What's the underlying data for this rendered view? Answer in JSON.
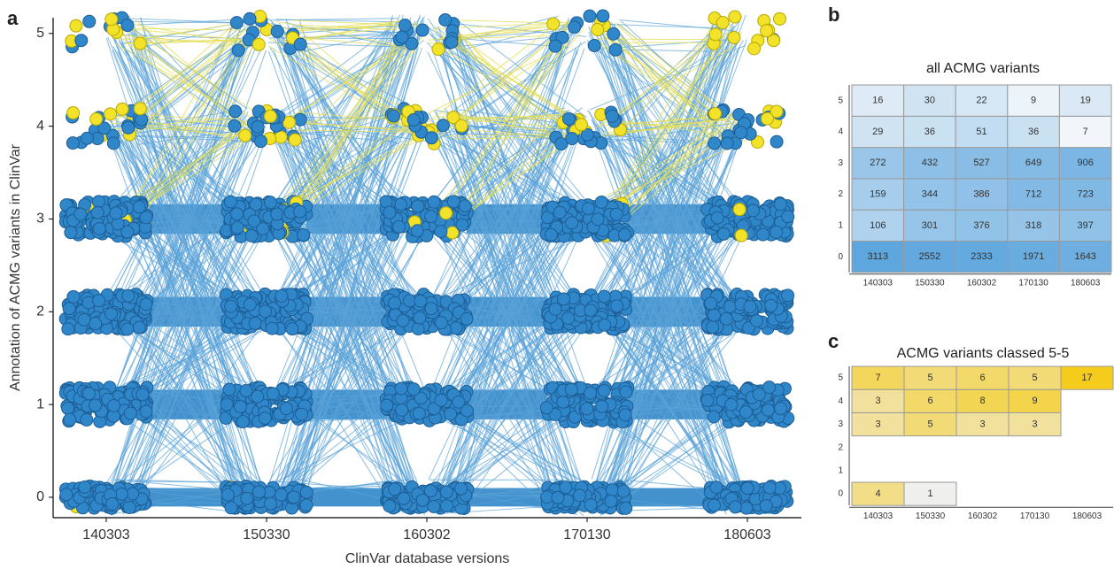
{
  "chart_data": [
    {
      "type": "scatter",
      "panel": "a",
      "xlabel": "ClinVar database versions",
      "ylabel": "Annotation of ACMG variants in ClinVar",
      "categories": [
        "140303",
        "150330",
        "160302",
        "170130",
        "180603"
      ],
      "ylim": [
        -0.22,
        5.17
      ],
      "yticks": [
        0,
        1,
        2,
        3,
        4,
        5
      ],
      "color": "#2f86c8",
      "highlight_color": "#f2e32a"
    },
    {
      "type": "heatmap",
      "panel": "b",
      "title": "all ACMG variants",
      "x_categories": [
        "140303",
        "150330",
        "160302",
        "170130",
        "180603"
      ],
      "y_categories": [
        0,
        1,
        2,
        3,
        4,
        5
      ],
      "values": [
        [
          3113,
          2552,
          2333,
          1971,
          1643
        ],
        [
          106,
          301,
          376,
          318,
          397
        ],
        [
          159,
          344,
          386,
          712,
          723
        ],
        [
          272,
          432,
          527,
          649,
          906
        ],
        [
          29,
          36,
          51,
          36,
          7
        ],
        [
          16,
          30,
          22,
          9,
          19
        ]
      ],
      "colors": [
        "#f2f6fa",
        "#5ea6de"
      ]
    },
    {
      "type": "heatmap",
      "panel": "c",
      "title": "ACMG variants classed 5-5",
      "x_categories": [
        "140303",
        "150330",
        "160302",
        "170130",
        "180603"
      ],
      "y_categories": [
        0,
        1,
        2,
        3,
        4,
        5
      ],
      "values": [
        [
          4,
          1,
          null,
          null,
          null
        ],
        [
          null,
          null,
          null,
          null,
          null
        ],
        [
          null,
          null,
          null,
          null,
          null
        ],
        [
          3,
          5,
          3,
          3,
          null
        ],
        [
          3,
          6,
          8,
          9,
          null
        ],
        [
          7,
          5,
          6,
          5,
          17
        ]
      ],
      "colors": [
        "#efefed",
        "#f5cc1c"
      ]
    }
  ]
}
